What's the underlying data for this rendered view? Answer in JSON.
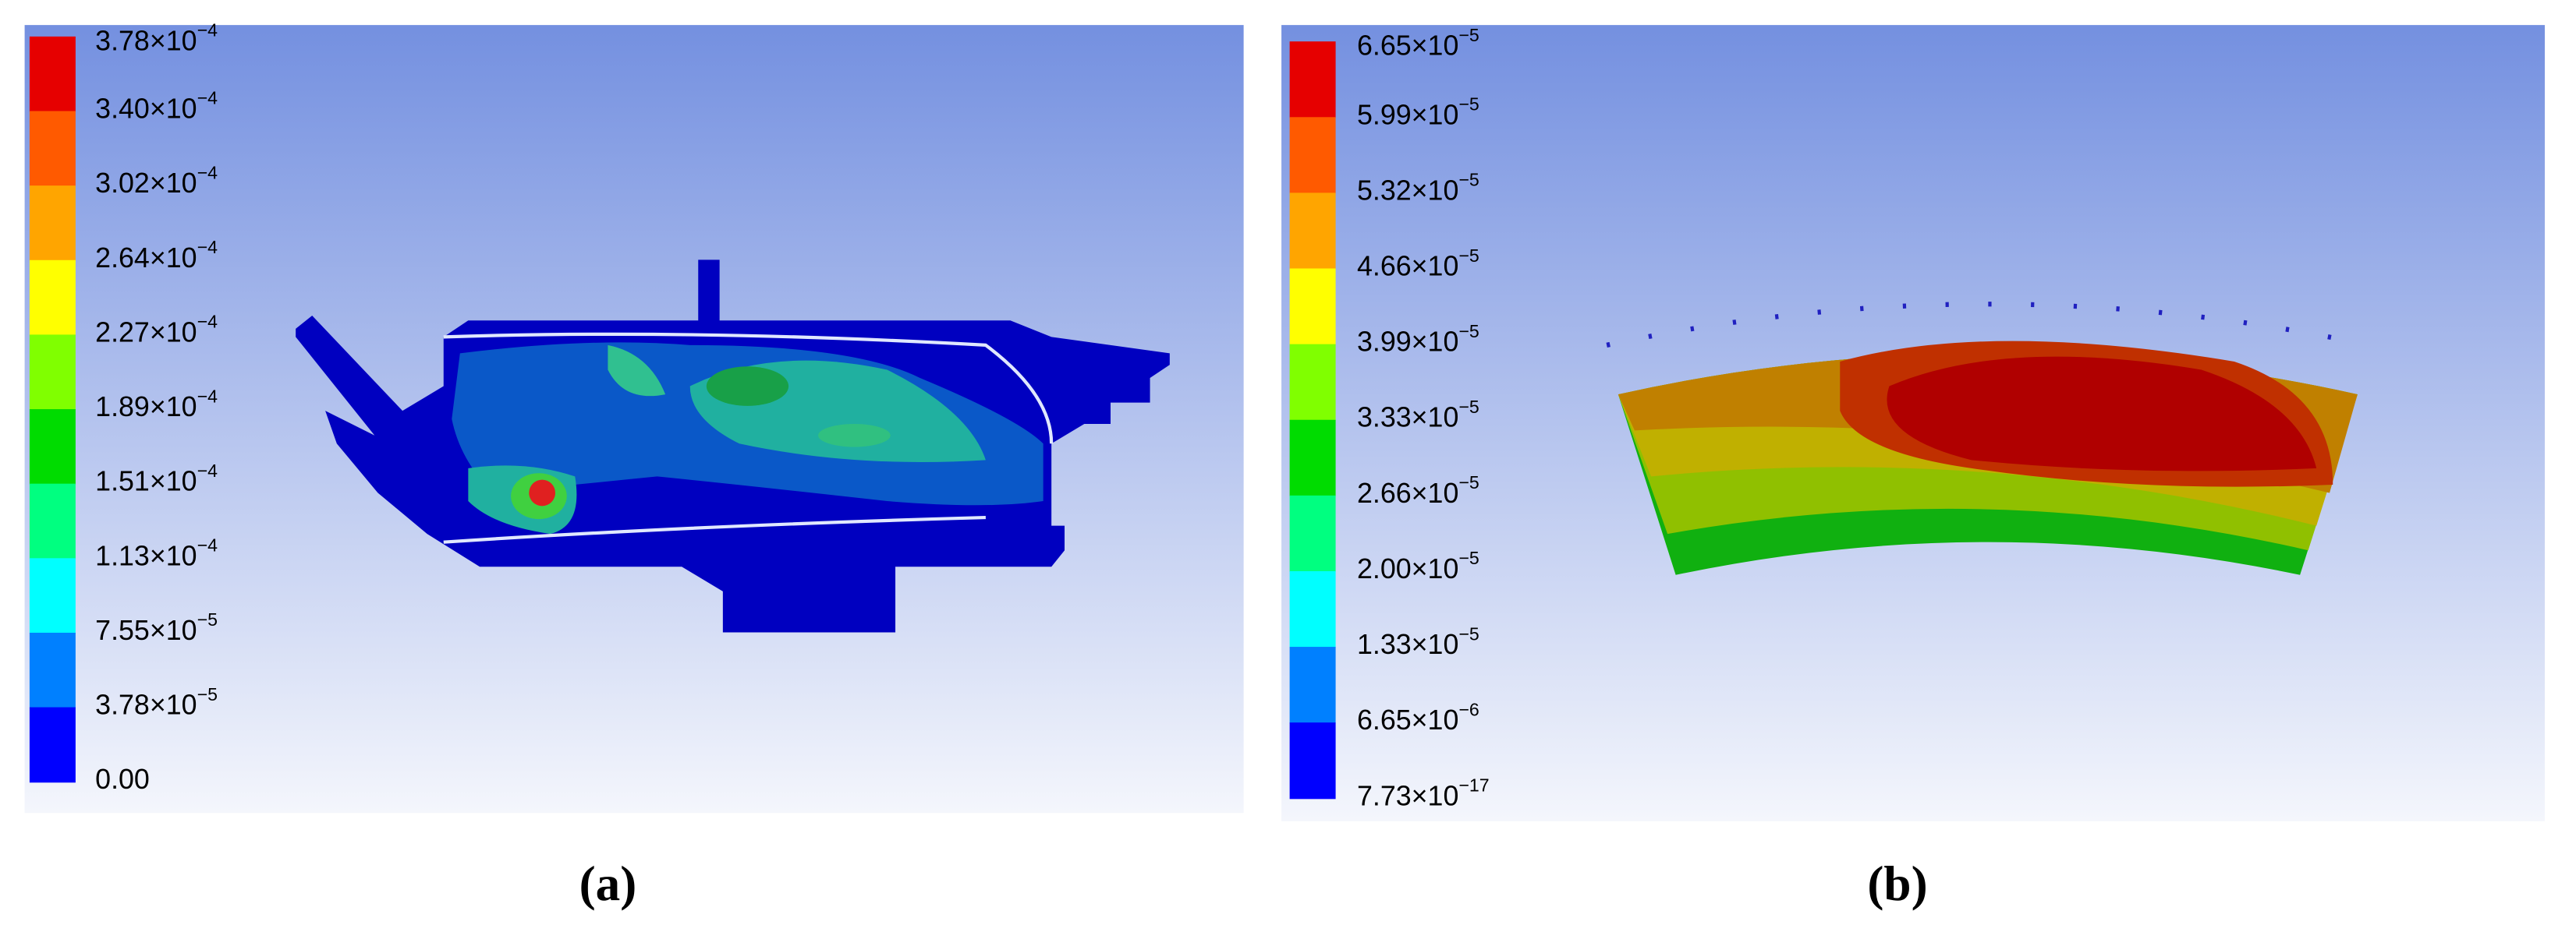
{
  "panels": [
    {
      "label": "(a)",
      "colors": [
        "#e60000",
        "#ff5a00",
        "#ffa500",
        "#ffff00",
        "#80ff00",
        "#00dc00",
        "#00ff80",
        "#00ffff",
        "#0080ff",
        "#0000ff"
      ],
      "ticks": [
        {
          "mantissa": "3.78×10",
          "exponent": "−4"
        },
        {
          "mantissa": "3.40×10",
          "exponent": "−4"
        },
        {
          "mantissa": "3.02×10",
          "exponent": "−4"
        },
        {
          "mantissa": "2.64×10",
          "exponent": "−4"
        },
        {
          "mantissa": "2.27×10",
          "exponent": "−4"
        },
        {
          "mantissa": "1.89×10",
          "exponent": "−4"
        },
        {
          "mantissa": "1.51×10",
          "exponent": "−4"
        },
        {
          "mantissa": "1.13×10",
          "exponent": "−4"
        },
        {
          "mantissa": "7.55×10",
          "exponent": "−5"
        },
        {
          "mantissa": "3.78×10",
          "exponent": "−5"
        },
        {
          "mantissa": "0.00"
        }
      ]
    },
    {
      "label": "(b)",
      "colors": [
        "#e60000",
        "#ff5a00",
        "#ffa500",
        "#ffff00",
        "#80ff00",
        "#00dc00",
        "#00ff80",
        "#00ffff",
        "#0080ff",
        "#0000ff"
      ],
      "ticks": [
        {
          "mantissa": "6.65×10",
          "exponent": "−5"
        },
        {
          "mantissa": "5.99×10",
          "exponent": "−5"
        },
        {
          "mantissa": "5.32×10",
          "exponent": "−5"
        },
        {
          "mantissa": "4.66×10",
          "exponent": "−5"
        },
        {
          "mantissa": "3.99×10",
          "exponent": "−5"
        },
        {
          "mantissa": "3.33×10",
          "exponent": "−5"
        },
        {
          "mantissa": "2.66×10",
          "exponent": "−5"
        },
        {
          "mantissa": "2.00×10",
          "exponent": "−5"
        },
        {
          "mantissa": "1.33×10",
          "exponent": "−5"
        },
        {
          "mantissa": "6.65×10",
          "exponent": "−6"
        },
        {
          "mantissa": "7.73×10",
          "exponent": "−17"
        }
      ]
    }
  ]
}
